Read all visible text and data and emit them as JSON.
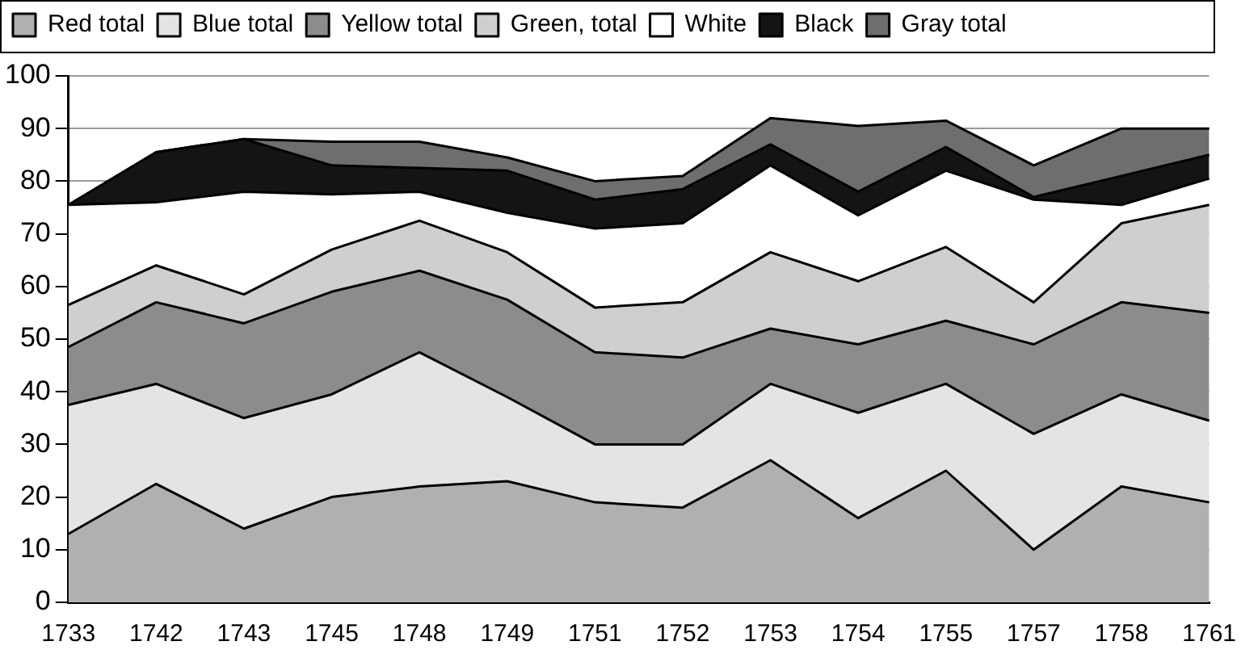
{
  "chart_data": {
    "type": "area",
    "stacked": true,
    "categories": [
      "1733",
      "1742",
      "1743",
      "1745",
      "1748",
      "1749",
      "1751",
      "1752",
      "1753",
      "1754",
      "1755",
      "1757",
      "1758",
      "1761"
    ],
    "ylim": [
      0,
      100
    ],
    "yticks": [
      0,
      10,
      20,
      30,
      40,
      50,
      60,
      70,
      80,
      90,
      100
    ],
    "grid": "y",
    "legend": "top",
    "series": [
      {
        "name": "Red total",
        "color": "#b0b0b0",
        "values": [
          13,
          22.5,
          14,
          20,
          22,
          23,
          19,
          18,
          27,
          16,
          25,
          10,
          22,
          19
        ]
      },
      {
        "name": "Blue total",
        "color": "#e4e4e4",
        "values": [
          24.5,
          19,
          21,
          19.5,
          25.5,
          16,
          11,
          12,
          14.5,
          20,
          16.5,
          22,
          17.5,
          15.5
        ]
      },
      {
        "name": "Yellow total",
        "color": "#8c8c8c",
        "values": [
          11,
          15.5,
          18,
          19.5,
          15.5,
          18.5,
          17.5,
          16.5,
          10.5,
          13,
          12,
          17,
          17.5,
          20.5
        ]
      },
      {
        "name": "Green, total",
        "color": "#cfcfcf",
        "values": [
          8,
          7,
          5.5,
          8,
          9.5,
          9,
          8.5,
          10.5,
          14.5,
          12,
          14,
          8,
          15,
          20.5
        ]
      },
      {
        "name": "White",
        "color": "#ffffff",
        "values": [
          19,
          12,
          19.5,
          10.5,
          5.5,
          7.5,
          15,
          15,
          16.5,
          12.5,
          14.5,
          19.5,
          3.5,
          5
        ]
      },
      {
        "name": "Black",
        "color": "#141414",
        "values": [
          0,
          9.5,
          10,
          5.5,
          4.5,
          8,
          5.5,
          6.5,
          4,
          4.5,
          4.5,
          0.5,
          5.5,
          4.5
        ]
      },
      {
        "name": "Gray total",
        "color": "#6e6e6e",
        "values": [
          0,
          0,
          0,
          4.5,
          5,
          2.5,
          3.5,
          2.5,
          5,
          12.5,
          5,
          6,
          9,
          5
        ]
      }
    ]
  }
}
